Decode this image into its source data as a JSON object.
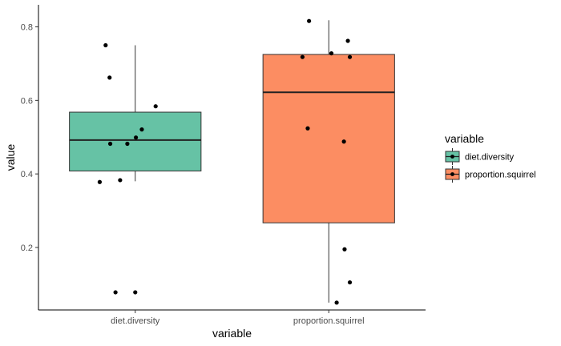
{
  "chart_data": {
    "type": "boxplot",
    "title": "",
    "xlabel": "variable",
    "ylabel": "value",
    "ylim": [
      0.03,
      0.86
    ],
    "yticks": [
      0.2,
      0.4,
      0.6,
      0.8
    ],
    "ytick_labels": [
      "0.2",
      "0.4",
      "0.6",
      "0.8"
    ],
    "grid": false,
    "legend_position": "right",
    "legend": {
      "title": "variable",
      "entries": [
        "diet.diversity",
        "proportion.squirrel"
      ]
    },
    "categories": [
      "diet.diversity",
      "proportion.squirrel"
    ],
    "series": [
      {
        "name": "diet.diversity",
        "color": "#66C2A5",
        "box": {
          "whisker_low": 0.38,
          "q1": 0.408,
          "median": 0.492,
          "q3": 0.568,
          "whisker_high": 0.75
        },
        "points": [
          {
            "x": -0.54,
            "y": 0.378
          },
          {
            "x": -0.45,
            "y": 0.75
          },
          {
            "x": -0.39,
            "y": 0.662
          },
          {
            "x": -0.38,
            "y": 0.482
          },
          {
            "x": -0.3,
            "y": 0.078
          },
          {
            "x": -0.23,
            "y": 0.383
          },
          {
            "x": -0.12,
            "y": 0.482
          },
          {
            "x": 0.0,
            "y": 0.078
          },
          {
            "x": 0.01,
            "y": 0.499
          },
          {
            "x": 0.1,
            "y": 0.521
          },
          {
            "x": 0.31,
            "y": 0.584
          }
        ]
      },
      {
        "name": "proportion.squirrel",
        "color": "#FC8D62",
        "box": {
          "whisker_low": 0.05,
          "q1": 0.267,
          "median": 0.622,
          "q3": 0.725,
          "whisker_high": 0.818
        },
        "points": [
          {
            "x": -0.4,
            "y": 0.718
          },
          {
            "x": -0.32,
            "y": 0.524
          },
          {
            "x": -0.3,
            "y": 0.816
          },
          {
            "x": 0.04,
            "y": 0.728
          },
          {
            "x": 0.12,
            "y": 0.05
          },
          {
            "x": 0.23,
            "y": 0.488
          },
          {
            "x": 0.24,
            "y": 0.195
          },
          {
            "x": 0.29,
            "y": 0.762
          },
          {
            "x": 0.32,
            "y": 0.718
          },
          {
            "x": 0.32,
            "y": 0.105
          }
        ]
      }
    ]
  }
}
